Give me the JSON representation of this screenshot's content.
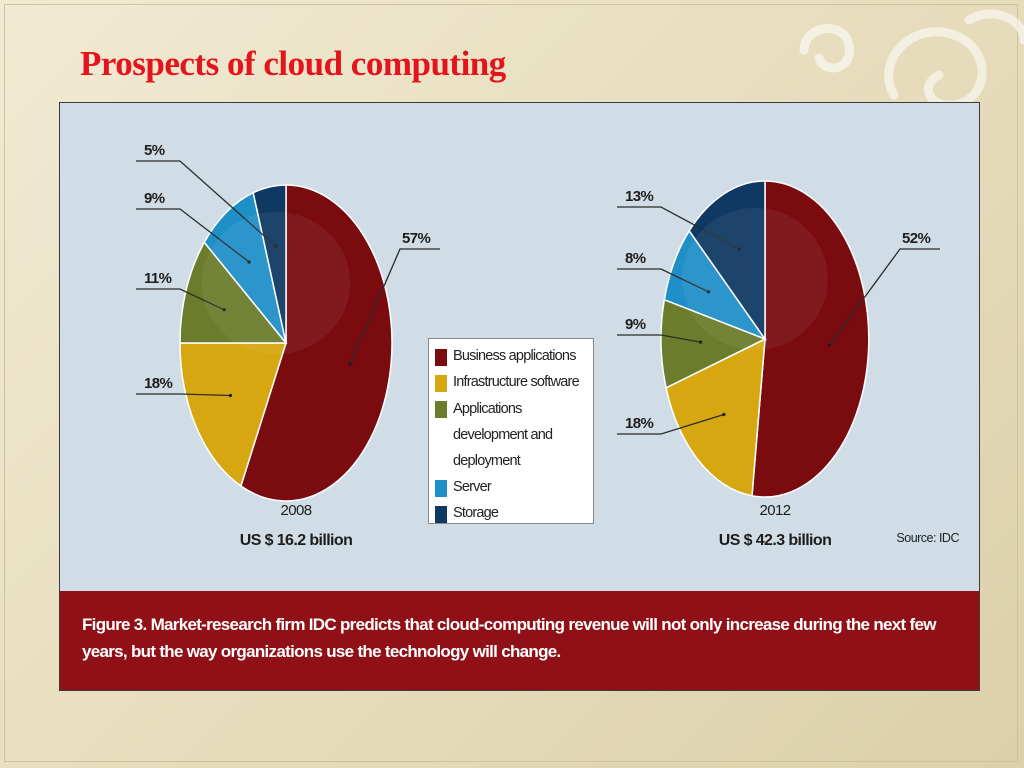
{
  "slide": {
    "title": "Prospects of cloud computing"
  },
  "figure": {
    "source": "Source: IDC",
    "caption": "Figure 3. Market-research firm IDC predicts that cloud-computing revenue will not only increase during the next few years, but the way organizations use the technology will change."
  },
  "colors": {
    "business": "#7a0c10",
    "infrastructure": "#d6a710",
    "appdev": "#6b7d2d",
    "server": "#1f8fc8",
    "storage": "#0f3962"
  },
  "legend": [
    {
      "label": "Business applications",
      "color": "#7a0c10"
    },
    {
      "label": "Infrastructure software",
      "color": "#d6a710"
    },
    {
      "label": "Applications development and deployment",
      "color": "#6b7d2d"
    },
    {
      "label": "Server",
      "color": "#1f8fc8"
    },
    {
      "label": "Storage",
      "color": "#0f3962"
    }
  ],
  "chart_data": [
    {
      "type": "pie",
      "title": "2008",
      "subtitle": "US $ 16.2 billion",
      "categories": [
        "Business applications",
        "Infrastructure software",
        "Applications development and deployment",
        "Server",
        "Storage"
      ],
      "values": [
        57,
        18,
        11,
        9,
        5
      ],
      "labels": [
        "57%",
        "18%",
        "11%",
        "9%",
        "5%"
      ]
    },
    {
      "type": "pie",
      "title": "2012",
      "subtitle": "US $ 42.3 billion",
      "categories": [
        "Business applications",
        "Infrastructure software",
        "Applications development and deployment",
        "Server",
        "Storage"
      ],
      "values": [
        52,
        18,
        9,
        8,
        13
      ],
      "labels": [
        "52%",
        "18%",
        "9%",
        "8%",
        "13%"
      ]
    }
  ]
}
